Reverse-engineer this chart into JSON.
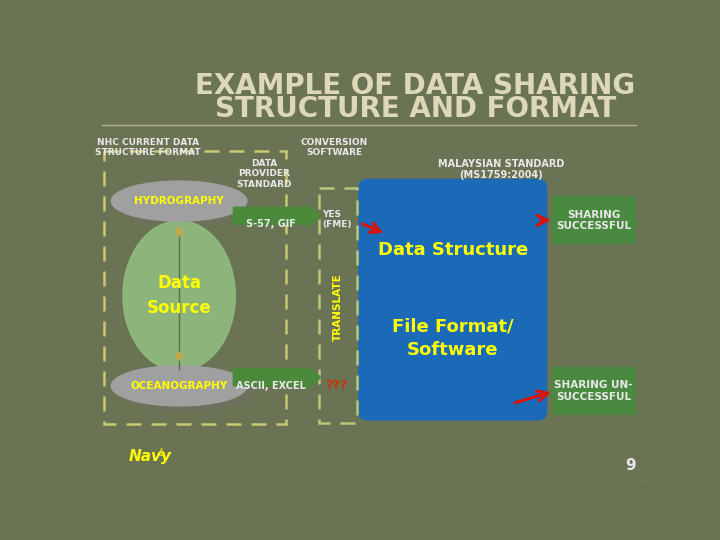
{
  "bg_color": "#6b7355",
  "title_line1": "EXAMPLE OF DATA SHARING",
  "title_line2": "STRUCTURE AND FORMAT",
  "title_color": "#ddd8b8",
  "title_fontsize": 20,
  "nhc_label": "NHC CURRENT DATA\nSTRUCTURE FORMAT",
  "conversion_label": "CONVERSION\nSOFTWARE",
  "data_provider_label": "DATA\nPROVIDER\nSTANDARD",
  "malaysian_label": "MALAYSIAN STANDARD\n(MS1759:2004)",
  "hydrography_label": "HYDROGRAPHY",
  "oceanography_label": "OCEANOGRAPHY",
  "data_source_label": "Data\nSource",
  "s57_label": "S-57, GIF",
  "ascii_label": "ASCII, EXCEL",
  "yes_fme_label": "YES\n(FME)",
  "qqq_label": "???",
  "translate_label": "TRANSLATE",
  "data_structure_label": "Data Structure",
  "file_format_label": "File Format/\nSoftware",
  "sharing_successful_label": "SHARING\nSUCCESSFUL",
  "sharing_unsuccessful_label": "SHARING UN-\nSUCCESSFUL",
  "page_number": "9",
  "dashed_box_color": "#c8c870",
  "conversion_box_color": "#b8c878",
  "blue_box_color": "#1a6ab8",
  "green_box_color": "#4a8a40",
  "gray_ellipse_color": "#a0a0a0",
  "green_ellipse_color": "#90bc80",
  "yellow_text_color": "#ffff00",
  "white_text_color": "#e8e8e8",
  "dark_text_color": "#1a1a1a",
  "red_arrow_color": "#dd1100",
  "green_arrow_color": "#4a8a3a",
  "navy_text_color": "#ffff00"
}
